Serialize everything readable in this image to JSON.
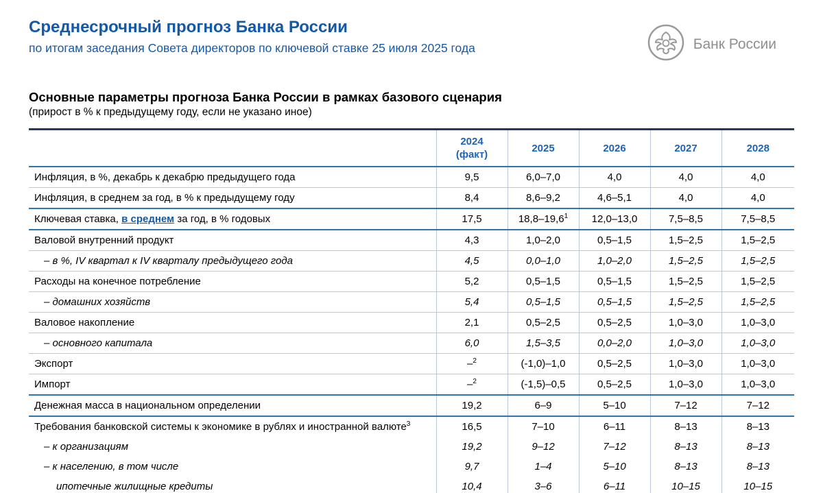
{
  "page": {
    "title": "Среднесрочный прогноз Банка России",
    "subtitle": "по итогам заседания Совета директоров по ключевой ставке 25 июля 2025 года",
    "logo_text": "Банк России",
    "heading": "Основные параметры прогноза Банка России в рамках базового сценария",
    "subheading": "(прирост в % к предыдущему году, если не указано иное)"
  },
  "colors": {
    "accent_blue": "#1459a8",
    "table_header_blue": "#1e64b4",
    "top_border_navy": "#1f3864",
    "group_separator_blue": "#2e74b5",
    "row_separator_gray": "#c6c6c6",
    "logo_gray": "#8f8f8f"
  },
  "table": {
    "header": {
      "corner": "",
      "years": [
        {
          "label": "2024",
          "sublabel": "(факт)"
        },
        {
          "label": "2025",
          "sublabel": ""
        },
        {
          "label": "2026",
          "sublabel": ""
        },
        {
          "label": "2027",
          "sublabel": ""
        },
        {
          "label": "2028",
          "sublabel": ""
        }
      ]
    },
    "rows": [
      {
        "label": "Инфляция, в %, декабрь к декабрю предыдущего года",
        "values": [
          "9,5",
          "6,0–7,0",
          "4,0",
          "4,0",
          "4,0"
        ],
        "border": "gray"
      },
      {
        "label": "Инфляция, в среднем за год, в % к предыдущему году",
        "values": [
          "8,4",
          "8,6–9,2",
          "4,6–5,1",
          "4,0",
          "4,0"
        ],
        "border": "blue"
      },
      {
        "label_parts": [
          {
            "text": "Ключевая ставка, "
          },
          {
            "text": "в среднем",
            "link": true
          },
          {
            "text": " за год, в % годовых"
          }
        ],
        "values": [
          "17,5",
          "18,8–19,6",
          "12,0–13,0",
          "7,5–8,5",
          "7,5–8,5"
        ],
        "value_sups": {
          "1": "1"
        },
        "border": "blue"
      },
      {
        "label": "Валовой внутренний продукт",
        "values": [
          "4,3",
          "1,0–2,0",
          "0,5–1,5",
          "1,5–2,5",
          "1,5–2,5"
        ],
        "border": "gray"
      },
      {
        "label": "–  в %, IV квартал к IV кварталу предыдущего года",
        "italic": true,
        "indent": 1,
        "values": [
          "4,5",
          "0,0–1,0",
          "1,0–2,0",
          "1,5–2,5",
          "1,5–2,5"
        ],
        "border": "gray"
      },
      {
        "label": "Расходы на конечное потребление",
        "values": [
          "5,2",
          "0,5–1,5",
          "0,5–1,5",
          "1,5–2,5",
          "1,5–2,5"
        ],
        "border": "gray"
      },
      {
        "label": "–  домашних хозяйств",
        "italic": true,
        "indent": 1,
        "values": [
          "5,4",
          "0,5–1,5",
          "0,5–1,5",
          "1,5–2,5",
          "1,5–2,5"
        ],
        "border": "gray"
      },
      {
        "label": "Валовое накопление",
        "values": [
          "2,1",
          "0,5–2,5",
          "0,5–2,5",
          "1,0–3,0",
          "1,0–3,0"
        ],
        "border": "gray"
      },
      {
        "label": "–  основного капитала",
        "italic": true,
        "indent": 1,
        "values": [
          "6,0",
          "1,5–3,5",
          "0,0–2,0",
          "1,0–3,0",
          "1,0–3,0"
        ],
        "border": "gray"
      },
      {
        "label": "Экспорт",
        "values": [
          "–",
          "(-1,0)–1,0",
          "0,5–2,5",
          "1,0–3,0",
          "1,0–3,0"
        ],
        "value_sups": {
          "0": "2"
        },
        "border": "gray"
      },
      {
        "label": "Импорт",
        "values": [
          "–",
          "(-1,5)–0,5",
          "0,5–2,5",
          "1,0–3,0",
          "1,0–3,0"
        ],
        "value_sups": {
          "0": "2"
        },
        "border": "blue"
      },
      {
        "label": "Денежная масса в национальном определении",
        "values": [
          "19,2",
          "6–9",
          "5–10",
          "7–12",
          "7–12"
        ],
        "border": "blue"
      },
      {
        "label": "Требования банковской системы к экономике в рублях и иностранной валюте",
        "label_sup": "3",
        "values": [
          "16,5",
          "7–10",
          "6–11",
          "8–13",
          "8–13"
        ],
        "border": "none"
      },
      {
        "label": "–  к организациям",
        "italic": true,
        "indent": 1,
        "values": [
          "19,2",
          "9–12",
          "7–12",
          "8–13",
          "8–13"
        ],
        "border": "none"
      },
      {
        "label": "–  к населению, в том числе",
        "italic": true,
        "indent": 1,
        "values": [
          "9,7",
          "1–4",
          "5–10",
          "8–13",
          "8–13"
        ],
        "border": "none"
      },
      {
        "label": "ипотечные жилищные кредиты",
        "italic": true,
        "indent": 2,
        "values": [
          "10,4",
          "3–6",
          "6–11",
          "10–15",
          "10–15"
        ],
        "border": "none"
      }
    ]
  }
}
